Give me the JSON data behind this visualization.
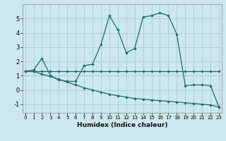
{
  "xlabel": "Humidex (Indice chaleur)",
  "bg_color": "#cce8ee",
  "grid_color": "#aacccc",
  "line_color": "#1a6b6b",
  "xlim": [
    -0.3,
    23.3
  ],
  "ylim": [
    -1.6,
    6.0
  ],
  "yticks": [
    -1,
    0,
    1,
    2,
    3,
    4,
    5
  ],
  "xticks": [
    0,
    1,
    2,
    3,
    4,
    5,
    6,
    7,
    8,
    9,
    10,
    11,
    12,
    13,
    14,
    15,
    16,
    17,
    18,
    19,
    20,
    21,
    22,
    23
  ],
  "line1_x": [
    0,
    1,
    2,
    3,
    4,
    5,
    6,
    7,
    8,
    9,
    10,
    11,
    12,
    13,
    14,
    15,
    16,
    17,
    18,
    19,
    20,
    21,
    22,
    23
  ],
  "line1_y": [
    1.3,
    1.3,
    1.3,
    1.3,
    1.3,
    1.3,
    1.3,
    1.3,
    1.3,
    1.3,
    1.3,
    1.3,
    1.3,
    1.3,
    1.3,
    1.3,
    1.3,
    1.3,
    1.3,
    1.3,
    1.3,
    1.3,
    1.3,
    1.3
  ],
  "line2_x": [
    0,
    1,
    2,
    3,
    4,
    5,
    6,
    7,
    8,
    9,
    10,
    11,
    12,
    13,
    14,
    15,
    16,
    17,
    18,
    19,
    20,
    21,
    22,
    23
  ],
  "line2_y": [
    1.3,
    1.4,
    2.2,
    1.0,
    0.7,
    0.6,
    0.6,
    1.7,
    1.8,
    3.2,
    5.2,
    4.2,
    2.6,
    2.9,
    5.1,
    5.2,
    5.4,
    5.2,
    3.9,
    0.3,
    0.35,
    0.35,
    0.3,
    -1.2
  ],
  "line3_x": [
    0,
    1,
    2,
    3,
    4,
    5,
    6,
    7,
    8,
    9,
    10,
    11,
    12,
    13,
    14,
    15,
    16,
    17,
    18,
    19,
    20,
    21,
    22,
    23
  ],
  "line3_y": [
    1.3,
    1.3,
    1.1,
    0.95,
    0.75,
    0.55,
    0.35,
    0.15,
    0.0,
    -0.15,
    -0.3,
    -0.4,
    -0.5,
    -0.6,
    -0.65,
    -0.7,
    -0.75,
    -0.8,
    -0.85,
    -0.9,
    -0.95,
    -1.0,
    -1.05,
    -1.2
  ]
}
